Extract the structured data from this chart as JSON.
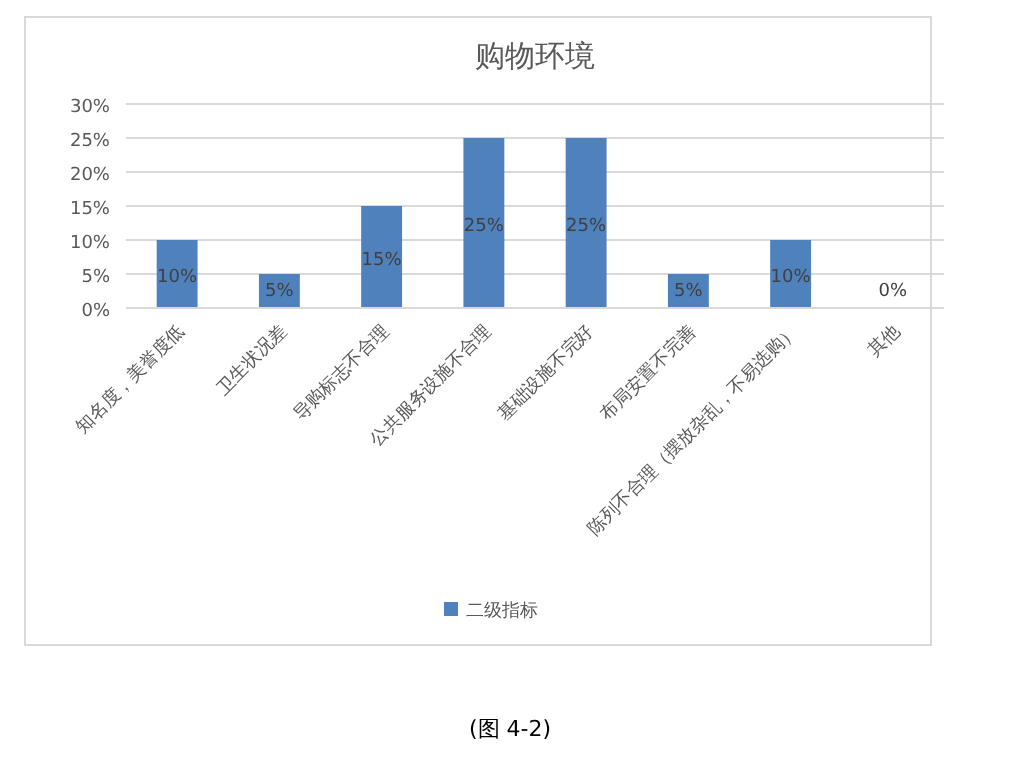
{
  "chart_data": {
    "type": "bar",
    "title": "购物环境",
    "categories": [
      "知名度，美誉度低",
      "卫生状况差",
      "导购标志不合理",
      "公共服务设施不合理",
      "基础设施不完好",
      "布局安置不完善",
      "陈列不合理（摆放杂乱，不易选购）",
      "其他"
    ],
    "series": [
      {
        "name": "二级指标",
        "color": "#4f81bd",
        "values": [
          10,
          5,
          15,
          25,
          25,
          5,
          10,
          0
        ],
        "value_labels": [
          "10%",
          "5%",
          "15%",
          "25%",
          "25%",
          "5%",
          "10%",
          "0%"
        ]
      }
    ],
    "ylim": [
      0,
      30
    ],
    "yticks": [
      {
        "value": 0,
        "label": "0%"
      },
      {
        "value": 5,
        "label": "5%"
      },
      {
        "value": 10,
        "label": "10%"
      },
      {
        "value": 15,
        "label": "15%"
      },
      {
        "value": 20,
        "label": "20%"
      },
      {
        "value": 25,
        "label": "25%"
      },
      {
        "value": 30,
        "label": "30%"
      }
    ],
    "grid": "y",
    "legend": "bottom",
    "annotations": [
      "(图 4-2)"
    ]
  }
}
